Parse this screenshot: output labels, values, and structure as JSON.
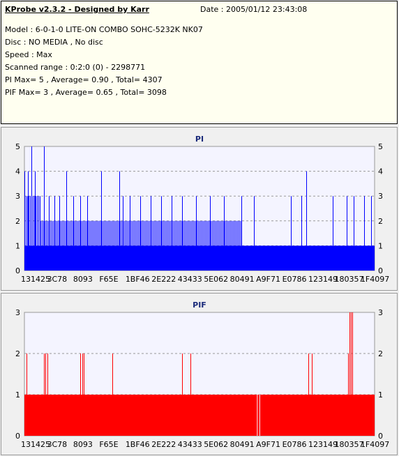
{
  "info": {
    "title": "KProbe v2.3.2 - Designed by Karr",
    "date": "Date : 2005/01/12 23:43:08",
    "lines": [
      "Model : 6-0-1-0 LITE-ON COMBO SOHC-5232K NK07",
      "Disc : NO MEDIA , No disc",
      "Speed : Max",
      "Scanned range : 0:2:0 (0) - 2298771",
      "PI Max= 5 , Average= 0.90 , Total= 4307",
      "PIF Max= 3 , Average= 0.65 , Total= 3098"
    ]
  },
  "chart_data": [
    {
      "type": "bar",
      "title": "PI",
      "color": "#0000ff",
      "ylim": [
        0,
        5
      ],
      "yticks": [
        0,
        1,
        2,
        3,
        4,
        5
      ],
      "grid": true,
      "categories": [
        "131425",
        "3C78",
        "8093",
        "F65E",
        "1BF46",
        "2E222",
        "43433",
        "5E062",
        "80491",
        "A9F71",
        "E0786",
        "123149",
        "180357",
        "1F4097"
      ],
      "baseline": 1,
      "bands": [
        {
          "from": 0.0,
          "to": 0.045,
          "value": 3
        },
        {
          "from": 0.045,
          "to": 0.3,
          "value": 2
        },
        {
          "from": 0.3,
          "to": 0.62,
          "value": 2
        },
        {
          "from": 0.62,
          "to": 1.0,
          "value": 1
        }
      ],
      "spikes": [
        {
          "x": 0.0,
          "value": 4
        },
        {
          "x": 0.01,
          "value": 4
        },
        {
          "x": 0.02,
          "value": 5
        },
        {
          "x": 0.03,
          "value": 4
        },
        {
          "x": 0.055,
          "value": 5
        },
        {
          "x": 0.07,
          "value": 3
        },
        {
          "x": 0.085,
          "value": 3
        },
        {
          "x": 0.1,
          "value": 3
        },
        {
          "x": 0.12,
          "value": 4
        },
        {
          "x": 0.14,
          "value": 3
        },
        {
          "x": 0.16,
          "value": 3
        },
        {
          "x": 0.18,
          "value": 3
        },
        {
          "x": 0.22,
          "value": 4
        },
        {
          "x": 0.27,
          "value": 4
        },
        {
          "x": 0.28,
          "value": 3
        },
        {
          "x": 0.3,
          "value": 3
        },
        {
          "x": 0.33,
          "value": 3
        },
        {
          "x": 0.36,
          "value": 3
        },
        {
          "x": 0.39,
          "value": 3
        },
        {
          "x": 0.42,
          "value": 3
        },
        {
          "x": 0.45,
          "value": 3
        },
        {
          "x": 0.49,
          "value": 3
        },
        {
          "x": 0.53,
          "value": 3
        },
        {
          "x": 0.57,
          "value": 3
        },
        {
          "x": 0.62,
          "value": 3
        },
        {
          "x": 0.655,
          "value": 3
        },
        {
          "x": 0.76,
          "value": 3
        },
        {
          "x": 0.79,
          "value": 3
        },
        {
          "x": 0.805,
          "value": 4
        },
        {
          "x": 0.88,
          "value": 3
        },
        {
          "x": 0.92,
          "value": 3
        },
        {
          "x": 0.94,
          "value": 3
        },
        {
          "x": 0.97,
          "value": 3
        },
        {
          "x": 0.99,
          "value": 3
        }
      ]
    },
    {
      "type": "bar",
      "title": "PIF",
      "color": "#ff0000",
      "ylim": [
        0,
        3
      ],
      "yticks": [
        0,
        1,
        2,
        3
      ],
      "grid": true,
      "categories": [
        "131425",
        "3C78",
        "8093",
        "F65E",
        "1BF46",
        "2E222",
        "43433",
        "5E062",
        "80491",
        "A9F71",
        "E0786",
        "123149",
        "180357",
        "1F4097"
      ],
      "baseline": 1,
      "gaps": [
        0.665,
        0.672
      ],
      "spikes": [
        {
          "x": 0.005,
          "value": 2
        },
        {
          "x": 0.055,
          "value": 2
        },
        {
          "x": 0.06,
          "value": 2
        },
        {
          "x": 0.065,
          "value": 2
        },
        {
          "x": 0.16,
          "value": 2
        },
        {
          "x": 0.165,
          "value": 2
        },
        {
          "x": 0.17,
          "value": 2
        },
        {
          "x": 0.25,
          "value": 2
        },
        {
          "x": 0.45,
          "value": 2
        },
        {
          "x": 0.475,
          "value": 2
        },
        {
          "x": 0.81,
          "value": 2
        },
        {
          "x": 0.82,
          "value": 2
        },
        {
          "x": 0.925,
          "value": 2
        },
        {
          "x": 0.928,
          "value": 3
        },
        {
          "x": 0.932,
          "value": 3
        },
        {
          "x": 0.936,
          "value": 3
        }
      ]
    }
  ]
}
